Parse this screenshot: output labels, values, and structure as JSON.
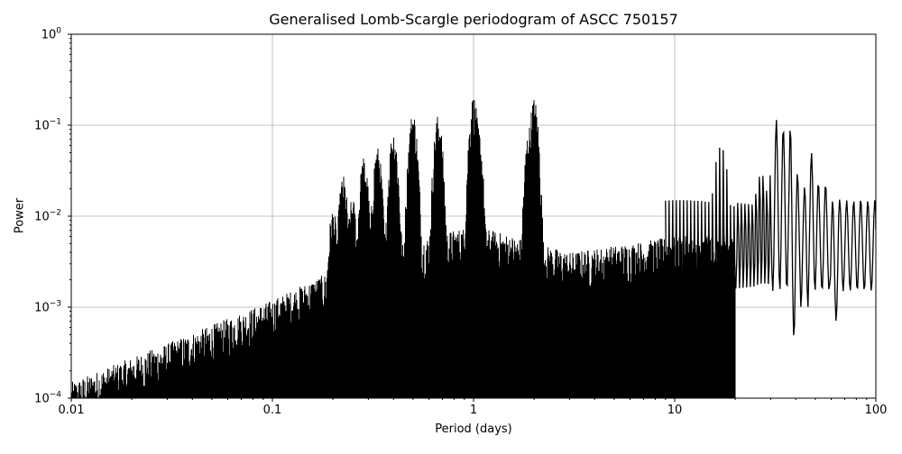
{
  "chart_data": {
    "type": "line",
    "title": "Generalised Lomb-Scargle periodogram of ASCC 750157",
    "xlabel": "Period (days)",
    "ylabel": "Power",
    "xscale": "log",
    "yscale": "log",
    "xlim": [
      0.01,
      100
    ],
    "ylim": [
      0.0001,
      1
    ],
    "grid": true,
    "legend": null,
    "line_color": "#000000",
    "grid_color": "#b0b0b0",
    "x_ticks": [
      {
        "value": 0.01,
        "label": "0.01"
      },
      {
        "value": 0.1,
        "label": "0.1"
      },
      {
        "value": 1,
        "label": "1"
      },
      {
        "value": 10,
        "label": "10"
      },
      {
        "value": 100,
        "label": "100"
      }
    ],
    "y_ticks": [
      {
        "value": 1,
        "base": "10",
        "exp": "0"
      },
      {
        "value": 0.1,
        "base": "10",
        "exp": "−1"
      },
      {
        "value": 0.01,
        "base": "10",
        "exp": "−2"
      },
      {
        "value": 0.001,
        "base": "10",
        "exp": "−3"
      },
      {
        "value": 0.0001,
        "base": "10",
        "exp": "−4"
      }
    ],
    "noise_floor_trend": [
      {
        "period": 0.01,
        "power": 0.00015
      },
      {
        "period": 0.03,
        "power": 0.0004
      },
      {
        "period": 0.1,
        "power": 0.0012
      },
      {
        "period": 0.3,
        "power": 0.004
      },
      {
        "period": 1.0,
        "power": 0.008
      },
      {
        "period": 3.0,
        "power": 0.004
      },
      {
        "period": 10.0,
        "power": 0.006
      }
    ],
    "alias_peaks": [
      {
        "period": 0.2,
        "power": 0.012
      },
      {
        "period": 0.225,
        "power": 0.028
      },
      {
        "period": 0.25,
        "power": 0.016
      },
      {
        "period": 0.285,
        "power": 0.045
      },
      {
        "period": 0.333,
        "power": 0.058
      },
      {
        "period": 0.4,
        "power": 0.09
      },
      {
        "period": 0.5,
        "power": 0.14
      },
      {
        "period": 0.667,
        "power": 0.13
      },
      {
        "period": 1.0,
        "power": 0.21
      },
      {
        "period": 1.05,
        "power": 0.1
      },
      {
        "period": 2.0,
        "power": 0.2
      },
      {
        "period": 1.9,
        "power": 0.1
      }
    ],
    "long_period_peaks": [
      {
        "period": 17.0,
        "power": 0.065
      },
      {
        "period": 27.0,
        "power": 0.035
      },
      {
        "period": 33.0,
        "power": 0.13
      },
      {
        "period": 36.5,
        "power": 0.11
      },
      {
        "period": 41.0,
        "power": 0.03
      },
      {
        "period": 48.0,
        "power": 0.05
      },
      {
        "period": 56.0,
        "power": 0.023
      },
      {
        "period": 68.0,
        "power": 0.017
      },
      {
        "period": 82.0,
        "power": 0.017
      }
    ],
    "long_period_troughs": [
      {
        "period": 38.7,
        "power": 0.00045
      },
      {
        "period": 44.0,
        "power": 0.001
      },
      {
        "period": 62.0,
        "power": 0.0007
      },
      {
        "period": 74.0,
        "power": 0.0015
      },
      {
        "period": 93.0,
        "power": 0.0037
      }
    ],
    "value_at_100_days": 0.007
  }
}
